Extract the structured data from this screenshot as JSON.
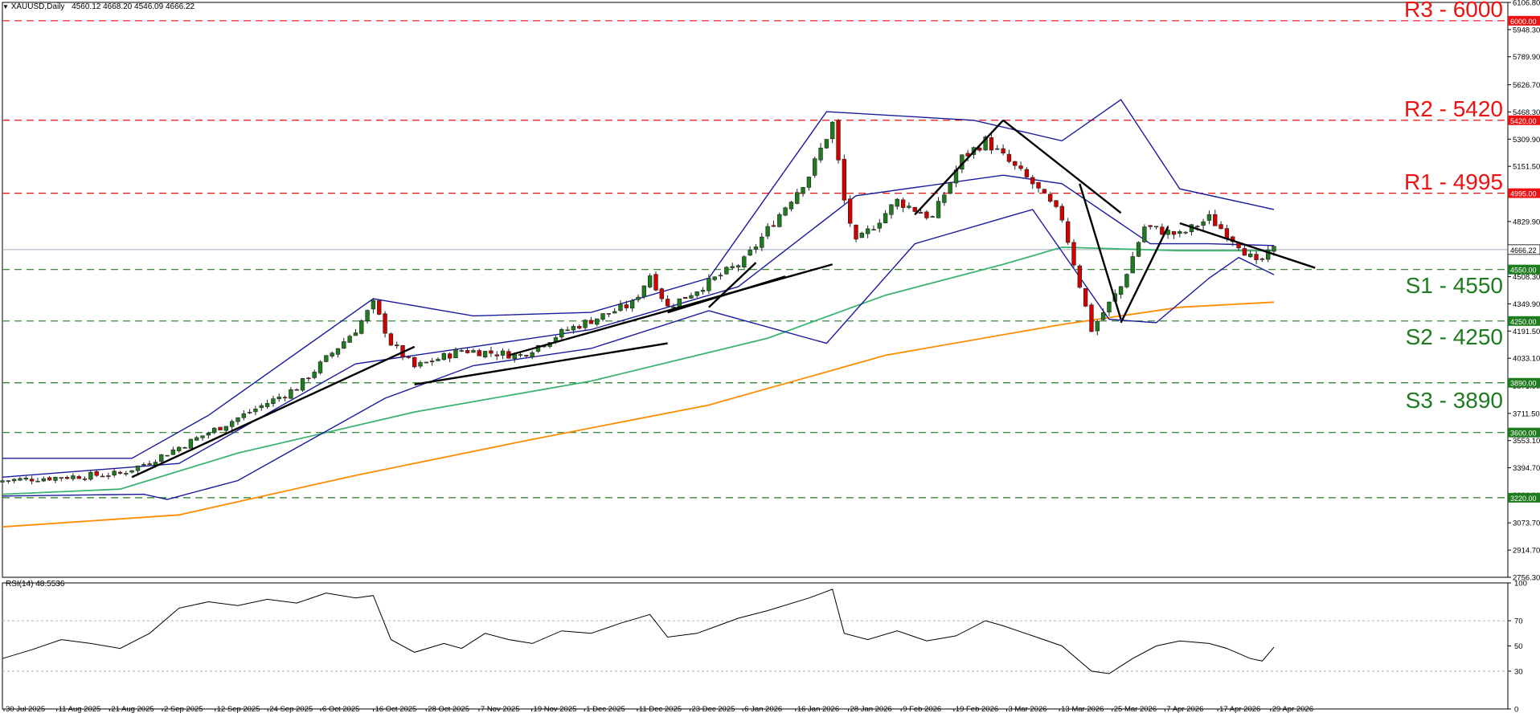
{
  "header": {
    "symbol": "XAUUSD,Daily",
    "ohlc": "4560.12 4668.20 4546.09 4666.22",
    "rsi_label": "RSI(14) 48.5536"
  },
  "levels": [
    {
      "text": "R3 - 6000",
      "tag": "6000.00",
      "value": 6000,
      "color": "#ee1111",
      "kind": "resistance"
    },
    {
      "text": "R2 - 5420",
      "tag": "5420.00",
      "value": 5420,
      "color": "#ee1111",
      "kind": "resistance"
    },
    {
      "text": "R1 - 4995",
      "tag": "4995.00",
      "value": 4995,
      "color": "#ee1111",
      "kind": "resistance"
    },
    {
      "text": "S1 - 4550",
      "tag": "4550.00",
      "value": 4550,
      "color": "#1e7b1e",
      "kind": "support"
    },
    {
      "text": "S2 - 4250",
      "tag": "4250.00",
      "value": 4250,
      "color": "#1e7b1e",
      "kind": "support"
    },
    {
      "text": "S3 - 3890",
      "tag": "3890.00",
      "value": 3890,
      "color": "#1e7b1e",
      "kind": "support"
    },
    {
      "text": "",
      "tag": "3600.00",
      "value": 3600,
      "color": "#1e7b1e",
      "kind": "support"
    },
    {
      "text": "",
      "tag": "3220.00",
      "value": 3220,
      "color": "#1e7b1e",
      "kind": "support"
    }
  ],
  "current_price": {
    "tag": "4666.22",
    "value": 4666.22
  },
  "colors": {
    "bull": "#1e7b1e",
    "bear": "#d40000",
    "bands": "#1a1a9e",
    "ma_green": "#3cb371",
    "ma_orange": "#ff8c00",
    "trend": "#000000",
    "rsi": "#000000"
  },
  "chart_data": [
    {
      "type": "candlestick",
      "title": "XAUUSD,Daily",
      "ylim": [
        2756.3,
        6106.8
      ],
      "y_ticks": [
        "6106.80",
        "5948.30",
        "5789.90",
        "5626.70",
        "5468.30",
        "5309.90",
        "5151.50",
        "4990.40",
        "4829.90",
        "4666.50",
        "4508.30",
        "4349.90",
        "4191.50",
        "4033.10",
        "3871.90",
        "3711.50",
        "3553.10",
        "3394.70",
        "3236.30",
        "3073.70",
        "2914.70",
        "2756.30"
      ],
      "x_labels": [
        "30 Jul 2025",
        "11 Aug 2025",
        "21 Aug 2025",
        "2 Sep 2025",
        "12 Sep 2025",
        "24 Sep 2025",
        "6 Oct 2025",
        "16 Oct 2025",
        "28 Oct 2025",
        "7 Nov 2025",
        "19 Nov 2025",
        "1 Dec 2025",
        "11 Dec 2025",
        "23 Dec 2025",
        "6 Jan 2026",
        "16 Jan 2026",
        "28 Jan 2026",
        "9 Feb 2026",
        "19 Feb 2026",
        "3 Mar 2026",
        "13 Mar 2026",
        "25 Mar 2026",
        "7 Apr 2026",
        "17 Apr 2026",
        "29 Apr 2026"
      ],
      "key_points": [
        {
          "t": 0,
          "close": 3320
        },
        {
          "t": 20,
          "close": 3360
        },
        {
          "t": 25,
          "close": 3430
        },
        {
          "t": 38,
          "close": 3650
        },
        {
          "t": 50,
          "close": 3860
        },
        {
          "t": 60,
          "close": 4200
        },
        {
          "t": 63,
          "close": 4350
        },
        {
          "t": 66,
          "close": 4120
        },
        {
          "t": 70,
          "close": 3980
        },
        {
          "t": 78,
          "close": 4080
        },
        {
          "t": 88,
          "close": 4050
        },
        {
          "t": 96,
          "close": 4200
        },
        {
          "t": 107,
          "close": 4350
        },
        {
          "t": 110,
          "close": 4520
        },
        {
          "t": 113,
          "close": 4330
        },
        {
          "t": 126,
          "close": 4600
        },
        {
          "t": 137,
          "close": 5100
        },
        {
          "t": 141,
          "close": 5400
        },
        {
          "t": 143,
          "close": 4950
        },
        {
          "t": 145,
          "close": 4700
        },
        {
          "t": 152,
          "close": 4950
        },
        {
          "t": 158,
          "close": 4850
        },
        {
          "t": 163,
          "close": 5200
        },
        {
          "t": 167,
          "close": 5300
        },
        {
          "t": 175,
          "close": 5050
        },
        {
          "t": 180,
          "close": 4850
        },
        {
          "t": 185,
          "close": 4200
        },
        {
          "t": 190,
          "close": 4450
        },
        {
          "t": 194,
          "close": 4800
        },
        {
          "t": 200,
          "close": 4750
        },
        {
          "t": 205,
          "close": 4850
        },
        {
          "t": 210,
          "close": 4700
        },
        {
          "t": 213,
          "close": 4580
        },
        {
          "t": 216,
          "close": 4666
        }
      ],
      "moving_averages": [
        {
          "name": "",
          "color": "#3cb371",
          "points": [
            [
              0,
              3240
            ],
            [
              20,
              3270
            ],
            [
              40,
              3480
            ],
            [
              70,
              3720
            ],
            [
              100,
              3900
            ],
            [
              130,
              4150
            ],
            [
              150,
              4400
            ],
            [
              170,
              4580
            ],
            [
              180,
              4680
            ],
            [
              200,
              4660
            ],
            [
              216,
              4660
            ]
          ]
        },
        {
          "name": "",
          "color": "#ff8c00",
          "points": [
            [
              0,
              3050
            ],
            [
              30,
              3120
            ],
            [
              60,
              3350
            ],
            [
              90,
              3560
            ],
            [
              120,
              3760
            ],
            [
              150,
              4050
            ],
            [
              180,
              4230
            ],
            [
              200,
              4330
            ],
            [
              216,
              4360
            ]
          ]
        }
      ],
      "bollinger": {
        "upper": [
          [
            0,
            3450
          ],
          [
            22,
            3450
          ],
          [
            35,
            3700
          ],
          [
            63,
            4380
          ],
          [
            80,
            4280
          ],
          [
            100,
            4300
          ],
          [
            120,
            4500
          ],
          [
            140,
            5470
          ],
          [
            165,
            5420
          ],
          [
            180,
            5300
          ],
          [
            190,
            5540
          ],
          [
            200,
            5020
          ],
          [
            216,
            4900
          ]
        ],
        "middle": [
          [
            0,
            3340
          ],
          [
            30,
            3420
          ],
          [
            60,
            4000
          ],
          [
            80,
            4100
          ],
          [
            100,
            4200
          ],
          [
            125,
            4450
          ],
          [
            145,
            4980
          ],
          [
            170,
            5100
          ],
          [
            180,
            5050
          ],
          [
            195,
            4700
          ],
          [
            205,
            4700
          ],
          [
            216,
            4690
          ]
        ],
        "lower": [
          [
            0,
            3230
          ],
          [
            24,
            3240
          ],
          [
            28,
            3210
          ],
          [
            40,
            3320
          ],
          [
            65,
            3800
          ],
          [
            80,
            3990
          ],
          [
            100,
            4090
          ],
          [
            120,
            4310
          ],
          [
            140,
            4120
          ],
          [
            155,
            4700
          ],
          [
            175,
            4900
          ],
          [
            188,
            4260
          ],
          [
            196,
            4240
          ],
          [
            205,
            4500
          ],
          [
            210,
            4620
          ],
          [
            216,
            4520
          ]
        ]
      },
      "trendlines": [
        [
          [
            22,
            3340
          ],
          [
            70,
            4100
          ]
        ],
        [
          [
            70,
            3880
          ],
          [
            113,
            4120
          ]
        ],
        [
          [
            113,
            4300
          ],
          [
            133,
            4510
          ]
        ],
        [
          [
            86,
            4050
          ],
          [
            141,
            4580
          ]
        ],
        [
          [
            120,
            4330
          ],
          [
            128,
            4590
          ]
        ],
        [
          [
            155,
            4870
          ],
          [
            170,
            5420
          ]
        ],
        [
          [
            170,
            5420
          ],
          [
            190,
            4880
          ]
        ],
        [
          [
            183,
            5050
          ],
          [
            190,
            4260
          ]
        ],
        [
          [
            190,
            4240
          ],
          [
            198,
            4800
          ]
        ],
        [
          [
            200,
            4820
          ],
          [
            223,
            4560
          ]
        ]
      ]
    },
    {
      "type": "line",
      "title": "RSI(14) 48.5536",
      "ylim": [
        0,
        100
      ],
      "y_ticks": [
        "100",
        "70",
        "50",
        "30",
        "0"
      ],
      "series": [
        {
          "name": "RSI(14)",
          "values": [
            [
              0,
              40
            ],
            [
              5,
              47
            ],
            [
              10,
              55
            ],
            [
              15,
              52
            ],
            [
              20,
              48
            ],
            [
              25,
              60
            ],
            [
              30,
              80
            ],
            [
              35,
              85
            ],
            [
              40,
              82
            ],
            [
              45,
              87
            ],
            [
              50,
              84
            ],
            [
              55,
              92
            ],
            [
              60,
              88
            ],
            [
              63,
              90
            ],
            [
              66,
              55
            ],
            [
              70,
              45
            ],
            [
              75,
              52
            ],
            [
              78,
              48
            ],
            [
              82,
              60
            ],
            [
              86,
              55
            ],
            [
              90,
              52
            ],
            [
              95,
              62
            ],
            [
              100,
              60
            ],
            [
              105,
              68
            ],
            [
              110,
              75
            ],
            [
              113,
              57
            ],
            [
              118,
              60
            ],
            [
              125,
              72
            ],
            [
              130,
              78
            ],
            [
              137,
              88
            ],
            [
              141,
              95
            ],
            [
              143,
              60
            ],
            [
              147,
              55
            ],
            [
              152,
              62
            ],
            [
              157,
              54
            ],
            [
              162,
              58
            ],
            [
              167,
              70
            ],
            [
              170,
              66
            ],
            [
              175,
              58
            ],
            [
              180,
              50
            ],
            [
              185,
              30
            ],
            [
              188,
              28
            ],
            [
              192,
              40
            ],
            [
              196,
              50
            ],
            [
              200,
              54
            ],
            [
              205,
              52
            ],
            [
              208,
              48
            ],
            [
              212,
              40
            ],
            [
              214,
              38
            ],
            [
              216,
              49
            ]
          ]
        }
      ]
    }
  ]
}
